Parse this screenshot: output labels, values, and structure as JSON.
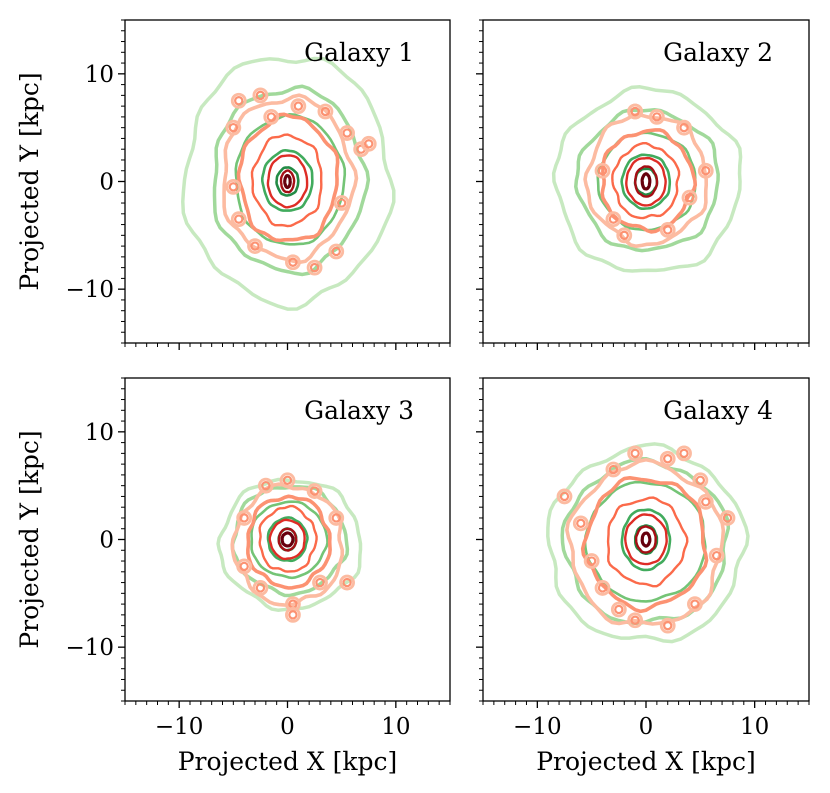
{
  "chart_data": {
    "type": "contour",
    "xlabel": "Projected X [kpc]",
    "ylabel": "Projected Y [kpc]",
    "xlim": [
      -15,
      15
    ],
    "ylim": [
      -15,
      15
    ],
    "major_ticks": [
      -10,
      0,
      10
    ],
    "tick_labels": [
      "−10",
      "0",
      "10"
    ],
    "grid": false,
    "layout": "2x2 grid, shared axes",
    "series_colors": {
      "green_contours": [
        "#c7e9c0",
        "#a1d99b",
        "#74c476",
        "#41ab5d",
        "#238b45"
      ],
      "red_contours": [
        "#fcbba1",
        "#fc9272",
        "#fb6a4a",
        "#de2d26",
        "#a50f15",
        "#67000d"
      ]
    },
    "panels": [
      {
        "title": "Galaxy 1",
        "green_levels": [
          [
            9.5,
            11.5,
            0.0,
            0.2
          ],
          [
            7.0,
            8.5,
            0.1,
            0.15
          ],
          [
            5.0,
            6.0,
            0.2,
            0.1
          ],
          [
            2.3,
            2.8,
            0.0,
            0.05
          ],
          [
            1.0,
            1.3,
            0.0,
            0.0
          ]
        ],
        "red_levels": [
          [
            6.0,
            7.5,
            0.0,
            0.3
          ],
          [
            4.5,
            5.8,
            0.1,
            0.2
          ],
          [
            3.2,
            4.2,
            0.0,
            0.1
          ],
          [
            1.8,
            2.4,
            0.0,
            0.05
          ],
          [
            0.6,
            1.0,
            0.0,
            0.0
          ],
          [
            0.25,
            0.55,
            0.0,
            0.0
          ]
        ],
        "clumps": [
          [
            -4.5,
            7.5
          ],
          [
            -2.5,
            8.0
          ],
          [
            1.0,
            7.0
          ],
          [
            3.5,
            6.5
          ],
          [
            -5.0,
            5.0
          ],
          [
            5.5,
            4.5
          ],
          [
            6.8,
            3.0
          ],
          [
            7.5,
            3.5
          ],
          [
            -5.0,
            -0.5
          ],
          [
            -4.5,
            -3.5
          ],
          [
            -3.0,
            -6.0
          ],
          [
            0.5,
            -7.5
          ],
          [
            2.5,
            -8.0
          ],
          [
            4.5,
            -6.5
          ],
          [
            5.0,
            -2.0
          ],
          [
            -1.5,
            6.0
          ]
        ]
      },
      {
        "title": "Galaxy 2",
        "green_levels": [
          [
            8.5,
            8.5,
            0.2,
            0.0
          ],
          [
            6.5,
            6.5,
            0.2,
            0.1
          ],
          [
            4.5,
            4.5,
            0.1,
            0.0
          ],
          [
            2.2,
            2.5,
            0.0,
            0.0
          ],
          [
            1.0,
            1.2,
            0.0,
            0.0
          ]
        ],
        "red_levels": [
          [
            5.5,
            6.0,
            0.1,
            0.2
          ],
          [
            4.2,
            4.6,
            0.1,
            0.1
          ],
          [
            3.0,
            3.4,
            0.0,
            0.0
          ],
          [
            1.8,
            2.2,
            0.0,
            0.0
          ],
          [
            1.0,
            1.4,
            0.0,
            0.0
          ],
          [
            0.35,
            0.7,
            0.0,
            0.0
          ]
        ],
        "clumps": [
          [
            -1.0,
            6.5
          ],
          [
            1.0,
            6.0
          ],
          [
            3.5,
            5.0
          ],
          [
            -4.0,
            1.0
          ],
          [
            5.5,
            1.0
          ],
          [
            -3.0,
            -3.5
          ],
          [
            2.0,
            -4.5
          ],
          [
            -1.0,
            6.5
          ],
          [
            4.0,
            -1.5
          ],
          [
            -2.0,
            -5.0
          ]
        ]
      },
      {
        "title": "Galaxy 3",
        "green_levels": [
          [
            6.5,
            6.0,
            0.3,
            -0.4
          ],
          [
            5.2,
            5.0,
            0.2,
            0.0
          ],
          [
            3.5,
            3.5,
            0.1,
            0.0
          ],
          [
            1.8,
            2.0,
            0.0,
            0.0
          ],
          [
            0.8,
            1.0,
            0.0,
            0.0
          ]
        ],
        "red_levels": [
          [
            5.0,
            5.5,
            0.1,
            -0.5
          ],
          [
            3.8,
            4.2,
            0.1,
            -0.2
          ],
          [
            2.6,
            3.0,
            0.0,
            0.0
          ],
          [
            1.6,
            1.8,
            0.0,
            0.0
          ],
          [
            0.8,
            1.0,
            0.0,
            0.0
          ],
          [
            0.5,
            0.6,
            0.0,
            0.0
          ]
        ],
        "clumps": [
          [
            0.0,
            5.5
          ],
          [
            -2.0,
            5.0
          ],
          [
            2.5,
            4.5
          ],
          [
            -4.0,
            2.0
          ],
          [
            4.5,
            2.0
          ],
          [
            -4.0,
            -2.5
          ],
          [
            5.5,
            -4.0
          ],
          [
            0.5,
            -6.0
          ],
          [
            0.5,
            -7.0
          ],
          [
            -2.5,
            -4.5
          ],
          [
            3.0,
            -4.0
          ]
        ]
      },
      {
        "title": "Galaxy 4",
        "green_levels": [
          [
            9.0,
            9.0,
            0.0,
            -0.5
          ],
          [
            7.5,
            7.5,
            0.0,
            -0.3
          ],
          [
            5.5,
            5.5,
            0.0,
            -0.2
          ],
          [
            2.2,
            2.8,
            0.0,
            0.0
          ],
          [
            1.0,
            1.3,
            0.0,
            0.0
          ]
        ],
        "red_levels": [
          [
            7.0,
            7.5,
            0.0,
            -0.5
          ],
          [
            5.5,
            6.0,
            0.0,
            -0.3
          ],
          [
            3.6,
            4.0,
            0.0,
            -0.2
          ],
          [
            1.9,
            2.3,
            0.0,
            0.0
          ],
          [
            0.9,
            1.2,
            0.0,
            0.0
          ],
          [
            0.35,
            0.6,
            0.0,
            0.0
          ]
        ],
        "clumps": [
          [
            -7.5,
            4.0
          ],
          [
            -6.0,
            1.5
          ],
          [
            -5.0,
            -2.0
          ],
          [
            -4.0,
            -4.5
          ],
          [
            -1.0,
            -7.5
          ],
          [
            2.0,
            -8.0
          ],
          [
            4.5,
            -6.0
          ],
          [
            6.5,
            -1.5
          ],
          [
            7.5,
            2.0
          ],
          [
            5.0,
            5.5
          ],
          [
            2.0,
            7.5
          ],
          [
            -1.0,
            8.0
          ],
          [
            -3.0,
            6.5
          ],
          [
            3.5,
            8.0
          ],
          [
            -2.5,
            -6.5
          ],
          [
            5.5,
            3.5
          ]
        ]
      }
    ]
  }
}
